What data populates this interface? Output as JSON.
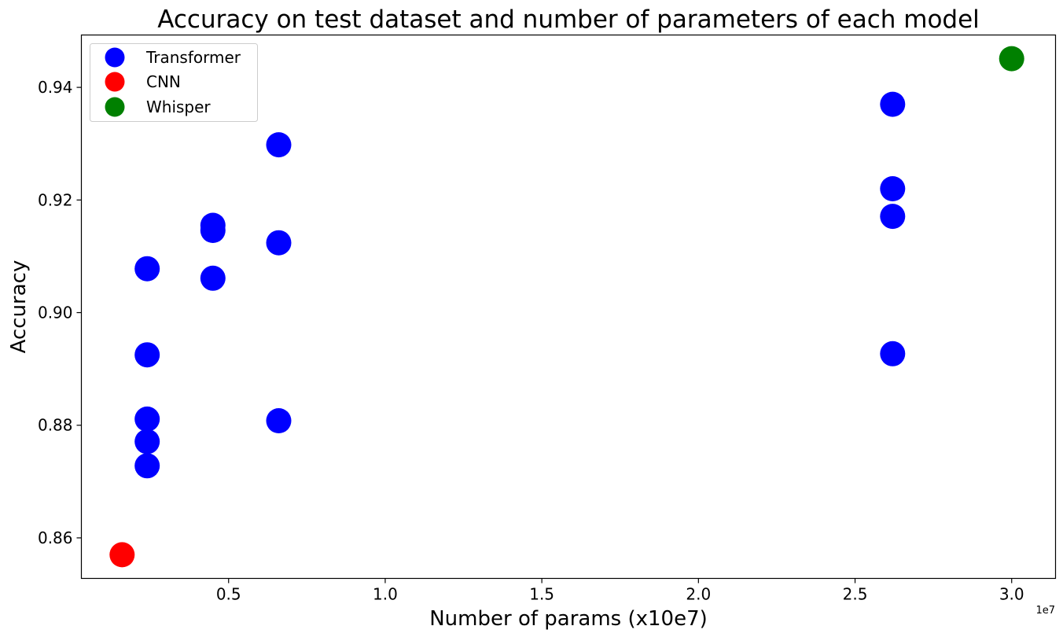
{
  "chart_data": {
    "type": "scatter",
    "title": "Accuracy on test dataset and number of parameters of each model",
    "xlabel": "Number of params (x10e7)",
    "ylabel": "Accuracy",
    "x_offset_label": "1e7",
    "xlim": [
      0.03,
      3.14
    ],
    "ylim": [
      0.8528,
      0.9493
    ],
    "x_ticks": [
      0.5,
      1.0,
      1.5,
      2.0,
      2.5,
      3.0
    ],
    "x_tick_labels": [
      "0.5",
      "1.0",
      "1.5",
      "2.0",
      "2.5",
      "3.0"
    ],
    "y_ticks": [
      0.86,
      0.88,
      0.9,
      0.92,
      0.94
    ],
    "y_tick_labels": [
      "0.86",
      "0.88",
      "0.90",
      "0.92",
      "0.94"
    ],
    "grid": false,
    "legend_position": "top-left",
    "series": [
      {
        "name": "Transformer",
        "color": "#0000ff",
        "points": [
          [
            0.24,
            0.9078
          ],
          [
            0.24,
            0.8925
          ],
          [
            0.24,
            0.8811
          ],
          [
            0.24,
            0.8771
          ],
          [
            0.24,
            0.8728
          ],
          [
            0.45,
            0.9155
          ],
          [
            0.45,
            0.9146
          ],
          [
            0.45,
            0.9061
          ],
          [
            0.66,
            0.9298
          ],
          [
            0.66,
            0.9124
          ],
          [
            0.66,
            0.8808
          ],
          [
            2.62,
            0.937
          ],
          [
            2.62,
            0.922
          ],
          [
            2.62,
            0.9171
          ],
          [
            2.62,
            0.8927
          ]
        ]
      },
      {
        "name": "CNN",
        "color": "#ff0000",
        "points": [
          [
            0.16,
            0.857
          ]
        ]
      },
      {
        "name": "Whisper",
        "color": "#008000",
        "points": [
          [
            3.0,
            0.9451
          ]
        ]
      }
    ]
  }
}
